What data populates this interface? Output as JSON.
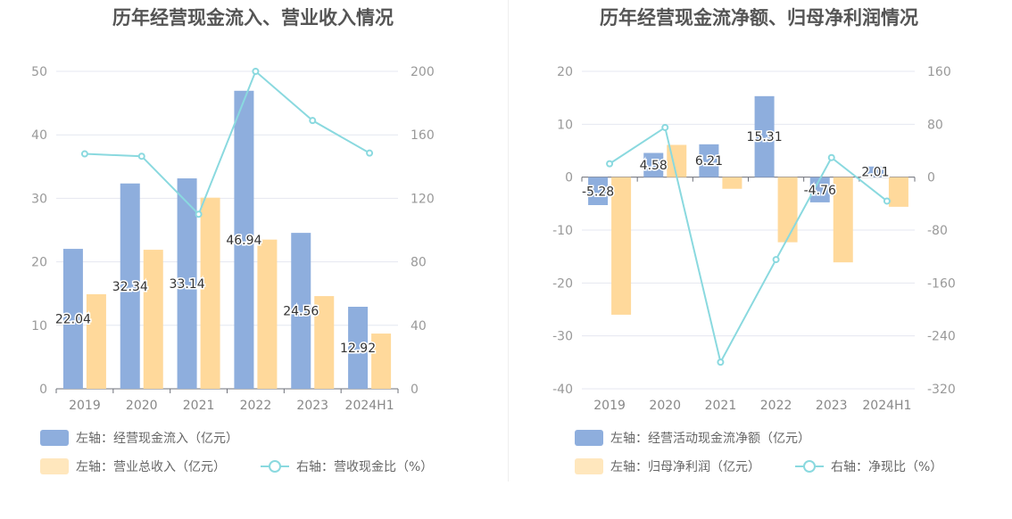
{
  "colors": {
    "blue": "#8eaedd",
    "orange": "#ffd99b",
    "teal": "#8ad9df",
    "grid": "#e4e7f0"
  },
  "chart_data": [
    {
      "type": "bar",
      "title": "历年经营现金流入、营业收入情况",
      "categories": [
        "2019",
        "2020",
        "2021",
        "2022",
        "2023",
        "2024H1"
      ],
      "left_axis": {
        "min": 0,
        "max": 50,
        "ticks": [
          0,
          10,
          20,
          30,
          40,
          50
        ]
      },
      "right_axis": {
        "min": 0,
        "max": 200,
        "ticks": [
          0,
          40,
          80,
          120,
          160,
          200
        ]
      },
      "series": [
        {
          "name": "左轴：经营现金流入（亿元）",
          "kind": "bar",
          "axis": "left",
          "color": "#8eaedd",
          "values": [
            22.04,
            32.34,
            33.14,
            46.94,
            24.56,
            12.92
          ],
          "labels": true
        },
        {
          "name": "左轴：营业总收入（亿元）",
          "kind": "bar",
          "axis": "left",
          "color": "#ffd99b",
          "values": [
            14.9,
            21.9,
            30.1,
            23.5,
            14.6,
            8.7
          ],
          "labels": false
        },
        {
          "name": "右轴：营收现金比（%）",
          "kind": "line",
          "axis": "right",
          "color": "#8ad9df",
          "values": [
            148,
            146.5,
            110,
            200,
            169,
            148.5
          ],
          "labels": false
        }
      ]
    },
    {
      "type": "bar",
      "title": "历年经营现金流净额、归母净利润情况",
      "categories": [
        "2019",
        "2020",
        "2021",
        "2022",
        "2023",
        "2024H1"
      ],
      "left_axis": {
        "min": -40,
        "max": 20,
        "ticks": [
          -40,
          -30,
          -20,
          -10,
          0,
          10,
          20
        ]
      },
      "right_axis": {
        "min": -320,
        "max": 160,
        "ticks": [
          -320,
          -240,
          -160,
          -80,
          0,
          80,
          160
        ]
      },
      "series": [
        {
          "name": "左轴：经营活动现金流净额（亿元）",
          "kind": "bar",
          "axis": "left",
          "color": "#8eaedd",
          "values": [
            -5.28,
            4.58,
            6.21,
            15.31,
            -4.76,
            2.01
          ],
          "labels": true
        },
        {
          "name": "左轴：归母净利润（亿元）",
          "kind": "bar",
          "axis": "left",
          "color": "#ffd99b",
          "values": [
            -26,
            6.1,
            -2.2,
            -12.3,
            -16.1,
            -5.6
          ],
          "labels": false
        },
        {
          "name": "右轴：净现比（%）",
          "kind": "line",
          "axis": "right",
          "color": "#8ad9df",
          "values": [
            20.3,
            75.1,
            -279.7,
            -124.6,
            29.6,
            -36.1
          ],
          "labels": false
        }
      ]
    }
  ]
}
